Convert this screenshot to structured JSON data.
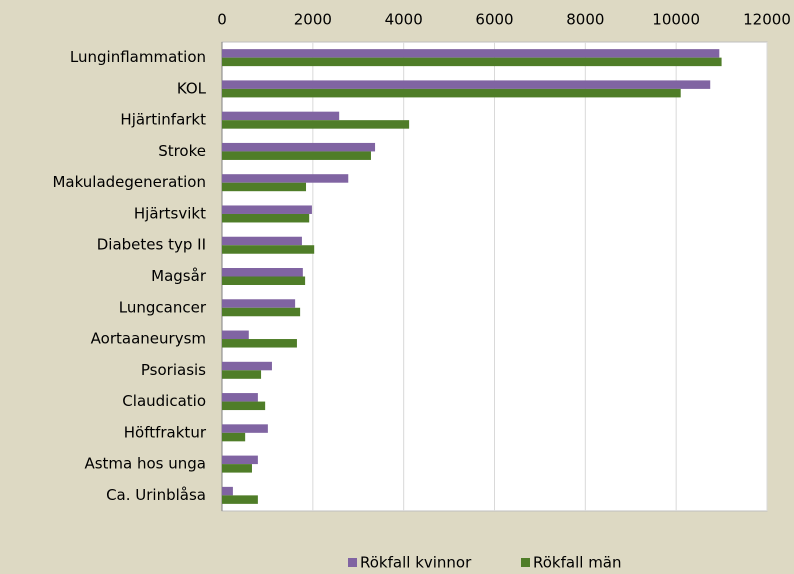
{
  "chart_data": {
    "type": "hbar",
    "categories": [
      "Lunginflammation",
      "KOL",
      "Hjärtinfarkt",
      "Stroke",
      "Makuladegeneration",
      "Hjärtsvikt",
      "Diabetes typ II",
      "Magsår",
      "Lungcancer",
      "Aortaaneurysm",
      "Psoriasis",
      "Claudicatio",
      "Höftfraktur",
      "Astma hos unga",
      "Ca. Urinblåsa"
    ],
    "series": [
      {
        "name": "Rökfall kvinnor",
        "color": "#8064a2",
        "values": [
          10950,
          10750,
          2580,
          3370,
          2780,
          1980,
          1760,
          1780,
          1610,
          590,
          1100,
          790,
          1010,
          790,
          240
        ]
      },
      {
        "name": "Rökfall män",
        "color": "#4f7d28",
        "values": [
          11000,
          10100,
          4120,
          3280,
          1850,
          1920,
          2030,
          1830,
          1720,
          1650,
          860,
          950,
          510,
          660,
          790
        ]
      }
    ],
    "xlim": [
      0,
      12000
    ],
    "xticks": [
      0,
      2000,
      4000,
      6000,
      8000,
      10000,
      12000
    ],
    "grid": true,
    "legend": "bottom"
  }
}
